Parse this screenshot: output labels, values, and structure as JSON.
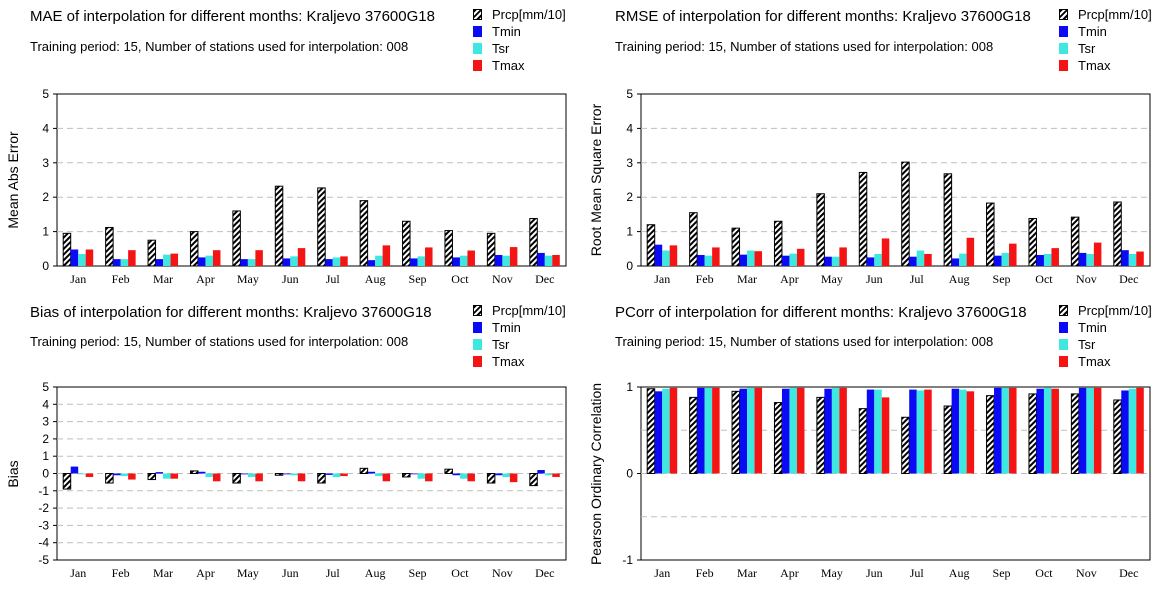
{
  "series_names": [
    "Prcp[mm/10]",
    "Tmin",
    "Tsr",
    "Tmax"
  ],
  "series_colors": [
    "#000000",
    "#0a0af5",
    "#3ee8e0",
    "#f51414"
  ],
  "chart_data": [
    {
      "type": "bar",
      "title": "MAE of interpolation for different months: Kraljevo  37600G18",
      "subtitle": "Training period: 15, Number of stations used for interpolation: 008",
      "xlabel": "",
      "ylabel": "Mean Abs Error",
      "ylim": [
        0,
        5
      ],
      "yticks": [
        "0",
        "1",
        "2",
        "3",
        "4",
        "5"
      ],
      "grid": "horizontal dashed",
      "legend": "top-right",
      "categories": [
        "Jan",
        "Feb",
        "Mar",
        "Apr",
        "May",
        "Jun",
        "Jul",
        "Aug",
        "Sep",
        "Oct",
        "Nov",
        "Dec"
      ],
      "series": [
        {
          "name": "Prcp[mm/10]",
          "values": [
            0.95,
            1.12,
            0.75,
            1.0,
            1.6,
            2.32,
            2.27,
            1.9,
            1.3,
            1.03,
            0.95,
            1.38
          ]
        },
        {
          "name": "Tmin",
          "values": [
            0.48,
            0.2,
            0.2,
            0.25,
            0.2,
            0.22,
            0.2,
            0.17,
            0.22,
            0.25,
            0.32,
            0.38
          ]
        },
        {
          "name": "Tsr",
          "values": [
            0.35,
            0.2,
            0.33,
            0.3,
            0.2,
            0.28,
            0.25,
            0.3,
            0.28,
            0.3,
            0.3,
            0.3
          ]
        },
        {
          "name": "Tmax",
          "values": [
            0.48,
            0.46,
            0.36,
            0.46,
            0.46,
            0.52,
            0.28,
            0.6,
            0.54,
            0.45,
            0.55,
            0.32
          ]
        }
      ]
    },
    {
      "type": "bar",
      "title": "RMSE of interpolation for different months: Kraljevo  37600G18",
      "subtitle": "Training period: 15, Number of stations used for interpolation: 008",
      "xlabel": "",
      "ylabel": "Root Mean Square Error",
      "ylim": [
        0,
        5
      ],
      "yticks": [
        "0",
        "1",
        "2",
        "3",
        "4",
        "5"
      ],
      "grid": "horizontal dashed",
      "legend": "top-right",
      "categories": [
        "Jan",
        "Feb",
        "Mar",
        "Apr",
        "May",
        "Jun",
        "Jul",
        "Aug",
        "Sep",
        "Oct",
        "Nov",
        "Dec"
      ],
      "series": [
        {
          "name": "Prcp[mm/10]",
          "values": [
            1.2,
            1.55,
            1.1,
            1.3,
            2.1,
            2.72,
            3.02,
            2.68,
            1.83,
            1.38,
            1.42,
            1.86
          ]
        },
        {
          "name": "Tmin",
          "values": [
            0.62,
            0.32,
            0.33,
            0.3,
            0.27,
            0.25,
            0.27,
            0.22,
            0.3,
            0.32,
            0.38,
            0.46
          ]
        },
        {
          "name": "Tsr",
          "values": [
            0.45,
            0.3,
            0.45,
            0.36,
            0.27,
            0.35,
            0.45,
            0.36,
            0.38,
            0.35,
            0.35,
            0.35
          ]
        },
        {
          "name": "Tmax",
          "values": [
            0.6,
            0.54,
            0.43,
            0.5,
            0.54,
            0.8,
            0.35,
            0.82,
            0.65,
            0.52,
            0.68,
            0.42
          ]
        }
      ]
    },
    {
      "type": "bar",
      "title": "Bias of interpolation for different months: Kraljevo  37600G18",
      "subtitle": "Training period: 15, Number of stations used for interpolation: 008",
      "xlabel": "",
      "ylabel": "Bias",
      "ylim": [
        -5,
        5
      ],
      "yticks": [
        "-5",
        "-4",
        "-3",
        "-2",
        "-1",
        "0",
        "1",
        "2",
        "3",
        "4",
        "5"
      ],
      "grid": "horizontal dashed",
      "legend": "top-right",
      "categories": [
        "Jan",
        "Feb",
        "Mar",
        "Apr",
        "May",
        "Jun",
        "Jul",
        "Aug",
        "Sep",
        "Oct",
        "Nov",
        "Dec"
      ],
      "series": [
        {
          "name": "Prcp[mm/10]",
          "values": [
            -0.9,
            -0.55,
            -0.35,
            0.15,
            -0.55,
            -0.1,
            -0.55,
            0.3,
            -0.2,
            0.25,
            -0.55,
            -0.7
          ]
        },
        {
          "name": "Tmin",
          "values": [
            0.4,
            -0.1,
            0.08,
            0.1,
            -0.05,
            -0.05,
            -0.08,
            0.1,
            0.0,
            -0.1,
            -0.1,
            0.2
          ]
        },
        {
          "name": "Tsr",
          "values": [
            0.0,
            -0.15,
            -0.3,
            -0.2,
            -0.2,
            -0.1,
            -0.2,
            -0.15,
            -0.3,
            -0.3,
            -0.2,
            -0.1
          ]
        },
        {
          "name": "Tmax",
          "values": [
            -0.2,
            -0.35,
            -0.3,
            -0.45,
            -0.45,
            -0.45,
            -0.15,
            -0.45,
            -0.45,
            -0.45,
            -0.5,
            -0.2
          ]
        }
      ]
    },
    {
      "type": "bar",
      "title": "PCorr of interpolation for different months: Kraljevo  37600G18",
      "subtitle": "Training period: 15, Number of stations used for interpolation: 008",
      "xlabel": "",
      "ylabel": "Pearson Ordinary Correlation",
      "ylim": [
        -1,
        1
      ],
      "yticks": [
        "-1",
        "0",
        "1"
      ],
      "grid": "horizontal dashed",
      "legend": "top-right",
      "categories": [
        "Jan",
        "Feb",
        "Mar",
        "Apr",
        "May",
        "Jun",
        "Jul",
        "Aug",
        "Sep",
        "Oct",
        "Nov",
        "Dec"
      ],
      "series": [
        {
          "name": "Prcp[mm/10]",
          "values": [
            0.98,
            0.88,
            0.95,
            0.82,
            0.88,
            0.75,
            0.65,
            0.78,
            0.9,
            0.92,
            0.92,
            0.85
          ]
        },
        {
          "name": "Tmin",
          "values": [
            0.95,
            0.99,
            0.98,
            0.98,
            0.98,
            0.97,
            0.97,
            0.98,
            0.99,
            0.98,
            0.99,
            0.96
          ]
        },
        {
          "name": "Tsr",
          "values": [
            0.98,
            0.99,
            0.99,
            0.99,
            0.99,
            0.97,
            0.96,
            0.97,
            0.99,
            0.99,
            0.99,
            0.98
          ]
        },
        {
          "name": "Tmax",
          "values": [
            0.99,
            0.99,
            0.99,
            0.99,
            0.99,
            0.88,
            0.97,
            0.95,
            0.99,
            0.98,
            0.99,
            0.99
          ]
        }
      ]
    }
  ]
}
